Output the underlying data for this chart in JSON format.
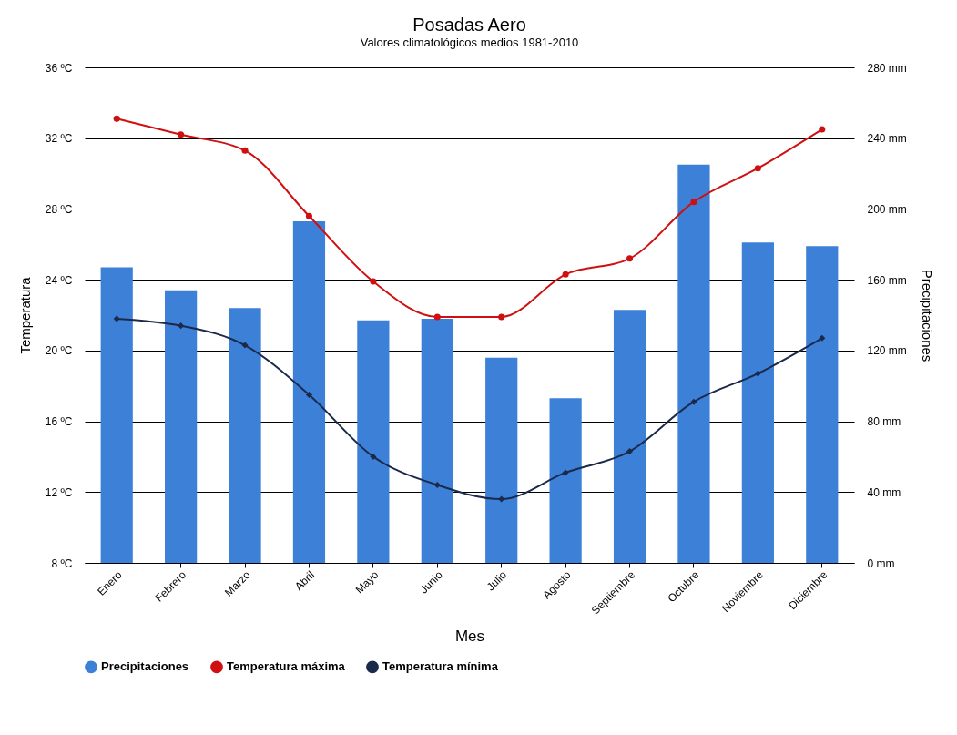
{
  "chart_data": {
    "type": "bar",
    "title": "Posadas Aero",
    "subtitle": "Valores climatológicos medios 1981-2010",
    "xlabel": "Mes",
    "ylabel": "Temperatura",
    "y2label": "Precipitaciones",
    "categories": [
      "Enero",
      "Febrero",
      "Marzo",
      "Abril",
      "Mayo",
      "Junio",
      "Julio",
      "Agosto",
      "Septiembre",
      "Octubre",
      "Noviembre",
      "Diciembre"
    ],
    "series": [
      {
        "name": "Precipitaciones",
        "axis": "y2",
        "color": "#3c80d8",
        "values": [
          167,
          154,
          144,
          193,
          137,
          138,
          116,
          93,
          143,
          225,
          181,
          179
        ]
      },
      {
        "name": "Temperatura máxima",
        "type": "line",
        "color": "#d01010",
        "marker": "circle",
        "values": [
          33.1,
          32.2,
          31.3,
          27.6,
          23.9,
          21.9,
          21.9,
          24.3,
          25.2,
          28.4,
          30.3,
          32.5
        ]
      },
      {
        "name": "Temperatura mínima",
        "type": "line",
        "color": "#1b2a4a",
        "marker": "diamond",
        "values": [
          21.8,
          21.4,
          20.3,
          17.5,
          14.0,
          12.4,
          11.6,
          13.1,
          14.3,
          17.1,
          18.7,
          20.7
        ]
      }
    ],
    "ylim": [
      8,
      36
    ],
    "yticks": [
      {
        "value": 8,
        "label": "8 ºC"
      },
      {
        "value": 12,
        "label": "12 ºC"
      },
      {
        "value": 16,
        "label": "16 ºC"
      },
      {
        "value": 20,
        "label": "20 ºC"
      },
      {
        "value": 24,
        "label": "24 ºC"
      },
      {
        "value": 28,
        "label": "28 ºC"
      },
      {
        "value": 32,
        "label": "32 ºC"
      },
      {
        "value": 36,
        "label": "36 ºC"
      }
    ],
    "y2lim": [
      0,
      280
    ],
    "y2ticks": [
      {
        "value": 0,
        "label": "0 mm"
      },
      {
        "value": 40,
        "label": "40 mm"
      },
      {
        "value": 80,
        "label": "80 mm"
      },
      {
        "value": 120,
        "label": "120 mm"
      },
      {
        "value": 160,
        "label": "160 mm"
      },
      {
        "value": 200,
        "label": "200 mm"
      },
      {
        "value": 240,
        "label": "240 mm"
      },
      {
        "value": 280,
        "label": "280 mm"
      }
    ],
    "grid": "y",
    "legend": "bottom",
    "line_style": "solid"
  }
}
